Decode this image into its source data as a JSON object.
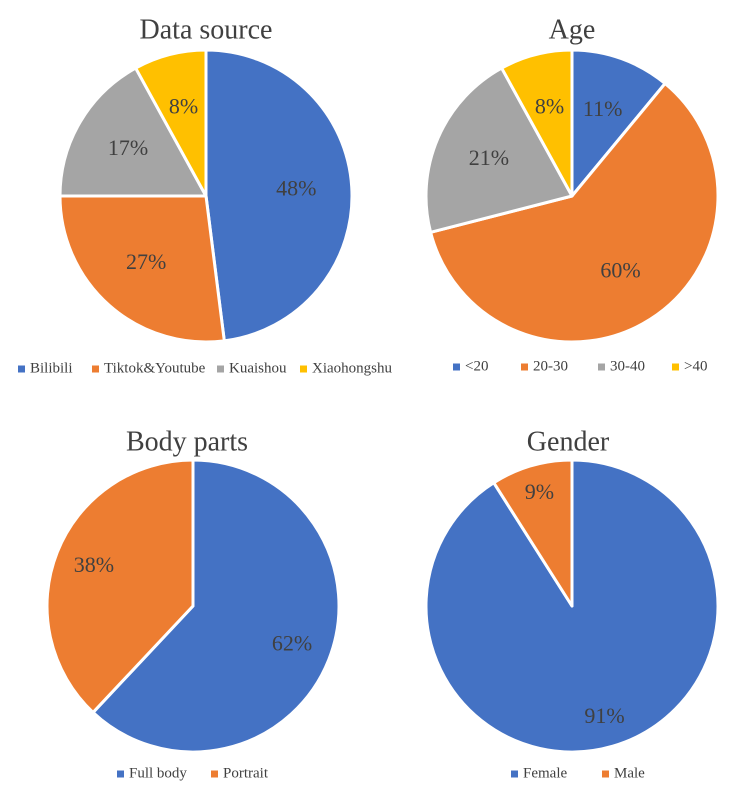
{
  "chart_data": [
    {
      "type": "pie",
      "title": "Data source",
      "categories": [
        "Bilibili",
        "Tiktok&Youtube",
        "Kuaishou",
        "Xiaohongshu"
      ],
      "values": [
        48,
        27,
        17,
        8
      ],
      "labels": [
        "48%",
        "27%",
        "17%",
        "8%"
      ],
      "colors": [
        "#4472C4",
        "#ED7D31",
        "#A5A5A5",
        "#FFC000"
      ],
      "legend": "bottom"
    },
    {
      "type": "pie",
      "title": "Age",
      "categories": [
        "<20",
        "20-30",
        "30-40",
        ">40"
      ],
      "values": [
        11,
        60,
        21,
        8
      ],
      "labels": [
        "11%",
        "60%",
        "21%",
        "8%"
      ],
      "colors": [
        "#4472C4",
        "#ED7D31",
        "#A5A5A5",
        "#FFC000"
      ],
      "legend": "bottom"
    },
    {
      "type": "pie",
      "title": "Body parts",
      "categories": [
        "Full body",
        "Portrait"
      ],
      "values": [
        62,
        38
      ],
      "labels": [
        "62%",
        "38%"
      ],
      "colors": [
        "#4472C4",
        "#ED7D31"
      ],
      "legend": "bottom"
    },
    {
      "type": "pie",
      "title": "Gender",
      "categories": [
        "Female",
        "Male"
      ],
      "values": [
        91,
        9
      ],
      "labels": [
        "91%",
        "9%"
      ],
      "colors": [
        "#4472C4",
        "#ED7D31"
      ],
      "legend": "bottom"
    }
  ]
}
